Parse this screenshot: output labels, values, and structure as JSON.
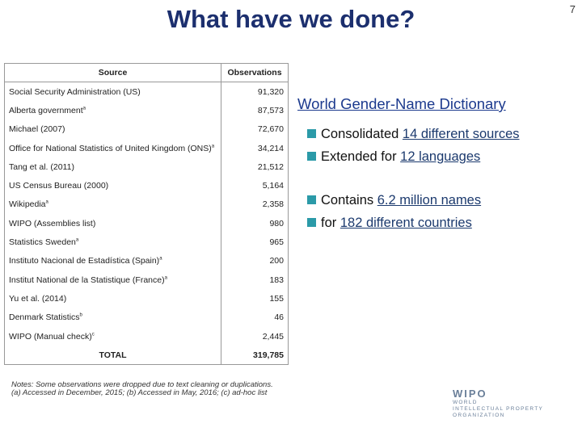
{
  "slide": {
    "title": "What have we done?",
    "page_number": "7"
  },
  "table": {
    "header": {
      "source": "Source",
      "observations": "Observations"
    },
    "rows": [
      {
        "source": "Social Security Administration (US)",
        "observations": "91,320"
      },
      {
        "source": "Alberta government",
        "note": "a",
        "observations": "87,573"
      },
      {
        "source": "Michael (2007)",
        "observations": "72,670"
      },
      {
        "source": "Office for National Statistics of United Kingdom (ONS)",
        "note": "a",
        "observations": "34,214"
      },
      {
        "source": "Tang et al. (2011)",
        "observations": "21,512"
      },
      {
        "source": "US Census Bureau (2000)",
        "observations": "5,164"
      },
      {
        "source": "Wikipedia",
        "note": "a",
        "observations": "2,358"
      },
      {
        "source": "WIPO (Assemblies list)",
        "observations": "980"
      },
      {
        "source": "Statistics Sweden",
        "note": "a",
        "observations": "965"
      },
      {
        "source": "Instituto Nacional de Estadística (Spain)",
        "note": "a",
        "observations": "200"
      },
      {
        "source": "Institut National de la Statistique (France)",
        "note": "a",
        "observations": "183"
      },
      {
        "source": "Yu et al. (2014)",
        "observations": "155"
      },
      {
        "source": "Denmark Statistics",
        "note": "b",
        "observations": "46"
      },
      {
        "source": "WIPO (Manual check)",
        "note": "c",
        "observations": "2,445"
      }
    ],
    "total": {
      "label": "TOTAL",
      "observations": "319,785"
    },
    "notes": [
      "Notes: Some observations were dropped due to text cleaning or duplications.",
      "(a) Accessed in December, 2015; (b) Accessed in May, 2016; (c) ad-hoc list"
    ]
  },
  "content": {
    "heading": "World Gender-Name Dictionary",
    "bullets": [
      {
        "text": "Consolidated ",
        "link": "14 different sources"
      },
      {
        "text": "Extended for ",
        "link": "12 languages"
      },
      {
        "text": "Contains ",
        "link": "6.2 million names"
      },
      {
        "text": "for ",
        "link": "182 different countries"
      }
    ]
  },
  "logo": {
    "name": "WIPO",
    "lines": [
      "WORLD",
      "INTELLECTUAL PROPERTY",
      "ORGANIZATION"
    ]
  }
}
